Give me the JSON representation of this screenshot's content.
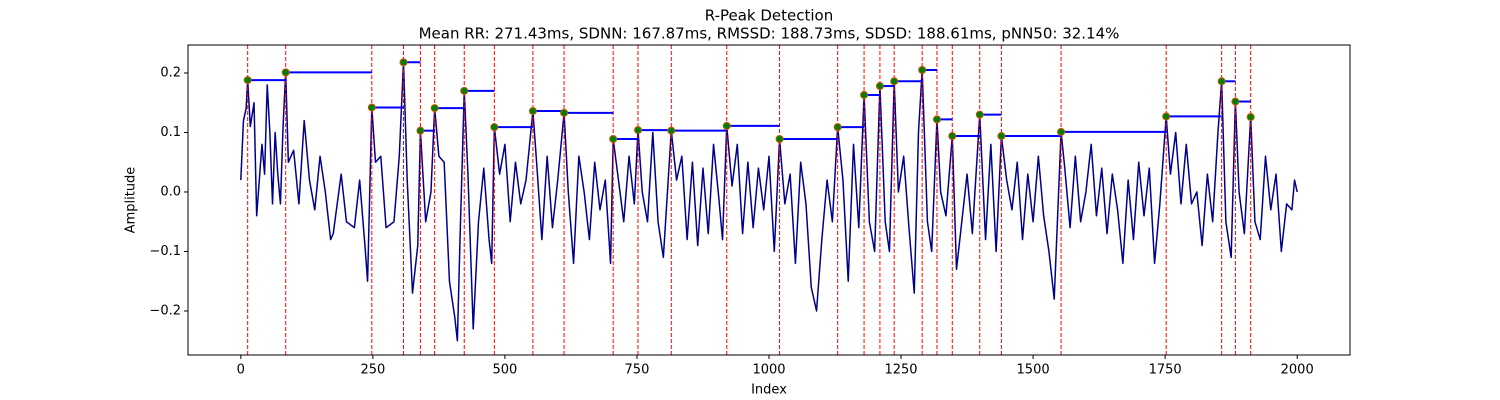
{
  "chart_data": {
    "type": "line",
    "title": "R-Peak Detection",
    "subtitle": "Mean RR: 271.43ms, SDNN: 167.87ms, RMSSD: 188.73ms, SDSD: 188.61ms, pNN50: 32.14%",
    "xlabel": "Index",
    "ylabel": "Amplitude",
    "color": "#00008b",
    "x": [
      0,
      5,
      10,
      13,
      18,
      25,
      30,
      40,
      45,
      50,
      55,
      60,
      65,
      70,
      75,
      80,
      85,
      90,
      100,
      110,
      120,
      130,
      140,
      150,
      160,
      170,
      175,
      190,
      200,
      215,
      225,
      235,
      240,
      248,
      255,
      265,
      275,
      290,
      300,
      308,
      315,
      325,
      335,
      340,
      350,
      360,
      367,
      375,
      385,
      395,
      405,
      410,
      415,
      423,
      430,
      440,
      450,
      460,
      470,
      475,
      480,
      490,
      500,
      510,
      520,
      530,
      540,
      553,
      560,
      570,
      580,
      590,
      600,
      612,
      620,
      630,
      640,
      650,
      660,
      670,
      680,
      690,
      700,
      705,
      715,
      725,
      735,
      745,
      752,
      760,
      770,
      780,
      790,
      800,
      815,
      825,
      835,
      845,
      855,
      865,
      875,
      885,
      895,
      905,
      912,
      920,
      930,
      940,
      950,
      960,
      970,
      980,
      990,
      1000,
      1010,
      1020,
      1030,
      1040,
      1050,
      1060,
      1070,
      1080,
      1090,
      1100,
      1110,
      1120,
      1130,
      1140,
      1150,
      1160,
      1170,
      1180,
      1190,
      1200,
      1210,
      1220,
      1228,
      1237,
      1245,
      1255,
      1265,
      1275,
      1283,
      1290,
      1300,
      1308,
      1318,
      1325,
      1335,
      1347,
      1355,
      1365,
      1375,
      1385,
      1399,
      1410,
      1420,
      1430,
      1440,
      1450,
      1460,
      1470,
      1480,
      1490,
      1500,
      1510,
      1520,
      1530,
      1540,
      1553,
      1560,
      1570,
      1580,
      1590,
      1600,
      1610,
      1620,
      1630,
      1640,
      1650,
      1660,
      1670,
      1680,
      1690,
      1700,
      1710,
      1720,
      1730,
      1740,
      1752,
      1760,
      1770,
      1780,
      1790,
      1800,
      1810,
      1820,
      1830,
      1840,
      1850,
      1857,
      1865,
      1875,
      1883,
      1890,
      1900,
      1912,
      1920,
      1930,
      1940,
      1950,
      1960,
      1970,
      1980,
      1990,
      1995,
      2000
    ],
    "values": [
      0.02,
      0.12,
      0.14,
      0.188,
      0.11,
      0.15,
      -0.04,
      0.08,
      0.03,
      0.18,
      0.1,
      -0.02,
      0.1,
      0.03,
      -0.02,
      0.11,
      0.201,
      0.05,
      0.07,
      -0.02,
      0.12,
      0.02,
      -0.03,
      0.06,
      0.0,
      -0.08,
      -0.07,
      0.03,
      -0.05,
      -0.06,
      0.02,
      -0.09,
      -0.15,
      0.142,
      0.05,
      0.06,
      -0.06,
      -0.05,
      0.06,
      0.218,
      0.02,
      -0.17,
      -0.09,
      0.103,
      -0.05,
      0.0,
      0.141,
      0.06,
      0.05,
      -0.15,
      -0.21,
      -0.25,
      -0.08,
      0.17,
      0.03,
      -0.23,
      -0.05,
      0.04,
      -0.08,
      -0.12,
      0.109,
      0.03,
      0.08,
      -0.05,
      0.05,
      -0.02,
      0.02,
      0.136,
      0.05,
      -0.08,
      0.06,
      -0.06,
      0.02,
      0.133,
      0.0,
      -0.12,
      0.06,
      0.0,
      -0.08,
      0.05,
      -0.03,
      0.02,
      -0.12,
      0.089,
      0.02,
      -0.05,
      0.06,
      -0.02,
      0.104,
      0.0,
      -0.05,
      0.1,
      -0.05,
      -0.11,
      0.103,
      0.02,
      0.06,
      -0.08,
      0.05,
      -0.09,
      0.04,
      -0.07,
      0.08,
      -0.01,
      -0.08,
      0.111,
      0.01,
      0.08,
      -0.07,
      0.05,
      -0.06,
      0.04,
      -0.03,
      0.06,
      -0.1,
      0.089,
      -0.02,
      0.03,
      -0.12,
      0.05,
      -0.02,
      -0.16,
      -0.2,
      -0.08,
      0.02,
      -0.05,
      0.109,
      0.02,
      -0.15,
      0.08,
      -0.06,
      0.163,
      -0.05,
      -0.1,
      0.178,
      -0.05,
      -0.1,
      0.186,
      0.0,
      0.06,
      -0.06,
      -0.17,
      0.1,
      0.205,
      -0.05,
      -0.1,
      0.122,
      0.0,
      -0.04,
      0.094,
      -0.13,
      -0.05,
      0.03,
      -0.07,
      0.13,
      -0.08,
      0.08,
      -0.1,
      0.094,
      0.02,
      -0.03,
      0.05,
      -0.08,
      0.03,
      -0.05,
      0.06,
      -0.04,
      -0.1,
      -0.18,
      0.101,
      0.04,
      -0.06,
      0.06,
      -0.05,
      0.0,
      0.08,
      -0.04,
      0.04,
      -0.07,
      0.03,
      -0.03,
      -0.12,
      0.02,
      -0.08,
      0.05,
      -0.04,
      0.04,
      -0.12,
      -0.02,
      0.127,
      0.03,
      0.1,
      -0.02,
      0.08,
      -0.02,
      0.0,
      -0.09,
      0.03,
      -0.05,
      0.1,
      0.186,
      -0.05,
      -0.11,
      0.152,
      0.0,
      -0.07,
      0.126,
      -0.05,
      -0.08,
      0.06,
      -0.03,
      0.03,
      -0.1,
      -0.02,
      -0.03,
      0.02,
      0.0
    ],
    "peaks": {
      "x": [
        13,
        85,
        248,
        308,
        340,
        367,
        423,
        480,
        553,
        612,
        705,
        752,
        815,
        920,
        1020,
        1130,
        1180,
        1210,
        1237,
        1290,
        1318,
        1347,
        1399,
        1440,
        1553,
        1752,
        1857,
        1883,
        1912
      ],
      "values": [
        0.188,
        0.201,
        0.142,
        0.218,
        0.103,
        0.141,
        0.17,
        0.109,
        0.136,
        0.133,
        0.089,
        0.104,
        0.103,
        0.111,
        0.089,
        0.109,
        0.163,
        0.178,
        0.186,
        0.205,
        0.122,
        0.094,
        0.13,
        0.094,
        0.101,
        0.127,
        0.186,
        0.152,
        0.126
      ],
      "marker_color": "#008000",
      "marker_edge_color": "#cc5500",
      "line_color": "#ff0000",
      "hline_color": "#0000ff"
    },
    "xlim": [
      -100,
      2100
    ],
    "ylim": [
      -0.274,
      0.247
    ],
    "xticks": [
      0,
      250,
      500,
      750,
      1000,
      1250,
      1500,
      1750,
      2000
    ],
    "yticks": [
      {
        "value": -0.2,
        "label": "−0.2"
      },
      {
        "value": -0.1,
        "label": "−0.1"
      },
      {
        "value": 0,
        "label": "0.0"
      },
      0.1,
      0.2
    ]
  }
}
